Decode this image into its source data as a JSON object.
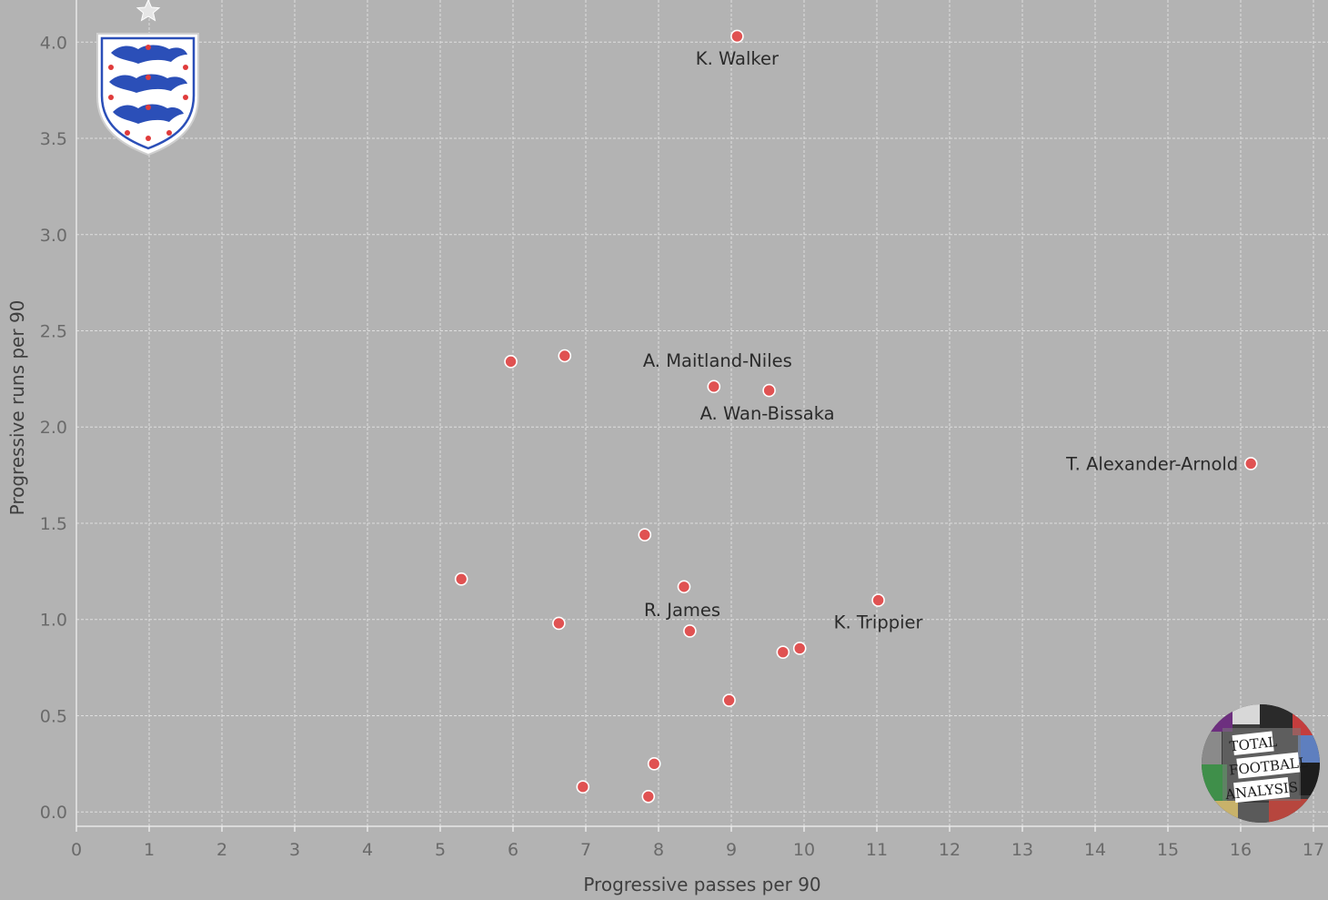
{
  "chart_data": {
    "type": "scatter",
    "xlabel": "Progressive passes per 90",
    "ylabel": "Progressive runs per 90",
    "xlim": [
      0,
      17
    ],
    "ylim": [
      -0.07,
      4.2
    ],
    "x_ticks": [
      0,
      1,
      2,
      3,
      4,
      5,
      6,
      7,
      8,
      9,
      10,
      11,
      12,
      13,
      14,
      15,
      16,
      17
    ],
    "y_ticks": [
      "0.0",
      "0.5",
      "1.0",
      "1.5",
      "2.0",
      "2.5",
      "3.0",
      "3.5",
      "4.0"
    ],
    "grid": true,
    "point_color": "#e05252",
    "points": [
      {
        "x": 9.08,
        "y": 4.03,
        "label": "K. Walker"
      },
      {
        "x": 5.97,
        "y": 2.34,
        "label": ""
      },
      {
        "x": 6.71,
        "y": 2.37,
        "label": ""
      },
      {
        "x": 8.76,
        "y": 2.21,
        "label": "A. Maitland-Niles"
      },
      {
        "x": 9.52,
        "y": 2.19,
        "label": "A. Wan-Bissaka"
      },
      {
        "x": 16.14,
        "y": 1.81,
        "label": "T. Alexander-Arnold"
      },
      {
        "x": 7.81,
        "y": 1.44,
        "label": ""
      },
      {
        "x": 5.29,
        "y": 1.21,
        "label": ""
      },
      {
        "x": 8.35,
        "y": 1.17,
        "label": "R. James"
      },
      {
        "x": 11.02,
        "y": 1.1,
        "label": "K. Trippier"
      },
      {
        "x": 6.63,
        "y": 0.98,
        "label": ""
      },
      {
        "x": 8.43,
        "y": 0.94,
        "label": ""
      },
      {
        "x": 9.71,
        "y": 0.83,
        "label": ""
      },
      {
        "x": 9.94,
        "y": 0.85,
        "label": ""
      },
      {
        "x": 8.97,
        "y": 0.58,
        "label": ""
      },
      {
        "x": 7.94,
        "y": 0.25,
        "label": ""
      },
      {
        "x": 6.96,
        "y": 0.13,
        "label": ""
      },
      {
        "x": 7.86,
        "y": 0.08,
        "label": ""
      }
    ]
  },
  "logos": {
    "crest": "three-lions-crest-icon",
    "watermark": "total-football-analysis-logo-icon"
  }
}
